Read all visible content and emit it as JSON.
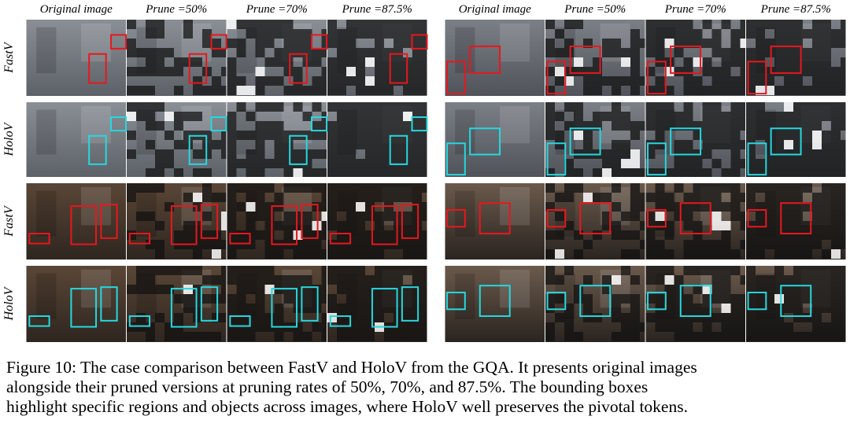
{
  "figure": {
    "panels": [
      {
        "headers": [
          "Original image",
          "Prune =50%",
          "Prune =70%",
          "Prune =87.5%"
        ]
      },
      {
        "headers": [
          "Original image",
          "Prune =50%",
          "Prune =70%",
          "Prune =87.5%"
        ]
      }
    ],
    "row_labels": [
      "FastV",
      "HoloV",
      "FastV",
      "HoloV"
    ],
    "caption": [
      "Figure 10: The case comparison between FastV and HoloV from the GQA. It presents original images",
      "alongside their pruned versions at pruning rates of 50%, 70%, and 87.5%. The bounding boxes",
      "highlight specific regions and objects across images, where HoloV well preserves the pivotal tokens."
    ]
  }
}
